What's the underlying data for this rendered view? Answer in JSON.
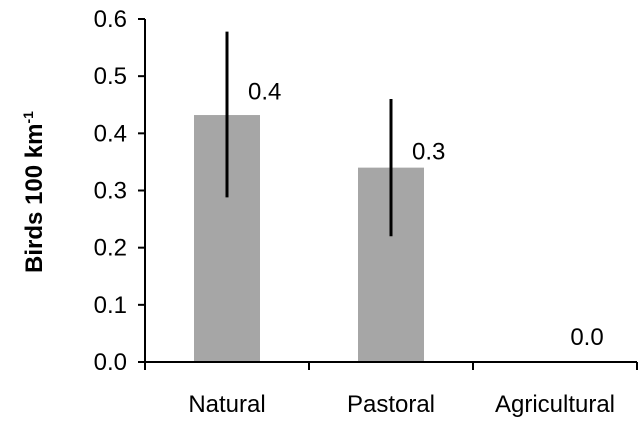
{
  "chart_data": {
    "type": "bar",
    "categories": [
      "Natural",
      "Pastoral",
      "Agricultural"
    ],
    "values": [
      0.432,
      0.34,
      0.0
    ],
    "error_low": [
      0.288,
      0.22,
      0.0
    ],
    "error_high": [
      0.578,
      0.46,
      0.0
    ],
    "data_labels": [
      "0.4",
      "0.3",
      "0.0"
    ],
    "ylabel": "Birds 100 km",
    "ylabel_superscript": "-1",
    "ylim": [
      0,
      0.6
    ],
    "yticks": [
      0.0,
      0.1,
      0.2,
      0.3,
      0.4,
      0.5,
      0.6
    ],
    "ytick_labels": [
      "0.0",
      "0.1",
      "0.2",
      "0.3",
      "0.4",
      "0.5",
      "0.6"
    ],
    "grid": false,
    "legend": "none",
    "bar_color": "#a6a6a6",
    "axis_color": "#000000"
  }
}
